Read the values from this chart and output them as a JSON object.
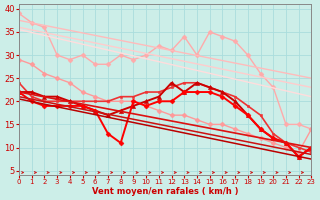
{
  "background_color": "#cceee8",
  "grid_color": "#aadddd",
  "xlabel": "Vent moyen/en rafales ( km/h )",
  "xlim": [
    0,
    23
  ],
  "ylim": [
    4,
    41
  ],
  "yticks": [
    5,
    10,
    15,
    20,
    25,
    30,
    35,
    40
  ],
  "xticks": [
    0,
    1,
    2,
    3,
    4,
    5,
    6,
    7,
    8,
    9,
    10,
    11,
    12,
    13,
    14,
    15,
    16,
    17,
    18,
    19,
    20,
    21,
    22,
    23
  ],
  "lines": [
    {
      "x": [
        0,
        1,
        2,
        3,
        4,
        5,
        6,
        7,
        8,
        9,
        10,
        11,
        12,
        13,
        14,
        15,
        16,
        17,
        18,
        19,
        20,
        21,
        22,
        23
      ],
      "y": [
        39,
        37,
        36,
        30,
        29,
        30,
        28,
        28,
        30,
        29,
        30,
        32,
        31,
        34,
        30,
        35,
        34,
        33,
        30,
        26,
        23,
        15,
        15,
        14
      ],
      "color": "#ffaaaa",
      "lw": 1.0,
      "marker": "D",
      "ms": 2.5
    },
    {
      "x": [
        0,
        23
      ],
      "y": [
        37.5,
        25.0
      ],
      "color": "#ffbbbb",
      "lw": 1.0,
      "marker": null,
      "ms": 0
    },
    {
      "x": [
        0,
        23
      ],
      "y": [
        36.0,
        23.0
      ],
      "color": "#ffcccc",
      "lw": 1.0,
      "marker": null,
      "ms": 0
    },
    {
      "x": [
        0,
        23
      ],
      "y": [
        35.5,
        21.0
      ],
      "color": "#ffdddd",
      "lw": 1.0,
      "marker": null,
      "ms": 0
    },
    {
      "x": [
        0,
        1,
        2,
        3,
        4,
        5,
        6,
        7,
        8,
        9,
        10,
        11,
        12,
        13,
        14,
        15,
        16,
        17,
        18,
        19,
        20,
        21,
        22,
        23
      ],
      "y": [
        29,
        28,
        26,
        25,
        24,
        22,
        21,
        20,
        20,
        20,
        19,
        18,
        17,
        17,
        16,
        15,
        15,
        14,
        13,
        12,
        11,
        10,
        9,
        14
      ],
      "color": "#ff9999",
      "lw": 1.0,
      "marker": "D",
      "ms": 2.5
    },
    {
      "x": [
        0,
        1,
        2,
        3,
        4,
        5,
        6,
        7,
        8,
        9,
        10,
        11,
        12,
        13,
        14,
        15,
        16,
        17,
        18,
        19,
        20,
        21,
        22,
        23
      ],
      "y": [
        24,
        21,
        20,
        20,
        20,
        20,
        20,
        20,
        21,
        21,
        22,
        22,
        23,
        24,
        24,
        23,
        22,
        21,
        19,
        17,
        13,
        11,
        10,
        9
      ],
      "color": "#ee3333",
      "lw": 1.2,
      "marker": "s",
      "ms": 2.0
    },
    {
      "x": [
        0,
        1,
        2,
        3,
        4,
        5,
        6,
        7,
        8,
        9,
        10,
        11,
        12,
        13,
        14,
        15,
        16,
        17,
        18,
        19,
        20,
        21,
        22,
        23
      ],
      "y": [
        22,
        22,
        21,
        21,
        20,
        19,
        18,
        17,
        18,
        19,
        20,
        21,
        24,
        22,
        24,
        23,
        22,
        20,
        17,
        14,
        12,
        11,
        8,
        10
      ],
      "color": "#cc0000",
      "lw": 1.4,
      "marker": "^",
      "ms": 3.0
    },
    {
      "x": [
        0,
        1,
        2,
        3,
        4,
        5,
        6,
        7,
        8,
        9,
        10,
        11,
        12,
        13,
        14,
        15,
        16,
        17,
        18,
        19,
        20,
        21,
        22,
        23
      ],
      "y": [
        22,
        20,
        19,
        19,
        19,
        19,
        18,
        13,
        11,
        20,
        19,
        20,
        20,
        22,
        22,
        22,
        21,
        19,
        17,
        14,
        12,
        11,
        8,
        10
      ],
      "color": "#ff0000",
      "lw": 1.4,
      "marker": "D",
      "ms": 2.5
    },
    {
      "x": [
        0,
        23
      ],
      "y": [
        22.0,
        10.0
      ],
      "color": "#dd1111",
      "lw": 1.2,
      "marker": null,
      "ms": 0
    },
    {
      "x": [
        0,
        23
      ],
      "y": [
        21.0,
        8.5
      ],
      "color": "#cc1111",
      "lw": 1.1,
      "marker": null,
      "ms": 0
    },
    {
      "x": [
        0,
        23
      ],
      "y": [
        20.5,
        7.5
      ],
      "color": "#bb0000",
      "lw": 1.1,
      "marker": null,
      "ms": 0
    }
  ],
  "arrow_color": "#cc2222",
  "font_color": "#cc0000"
}
